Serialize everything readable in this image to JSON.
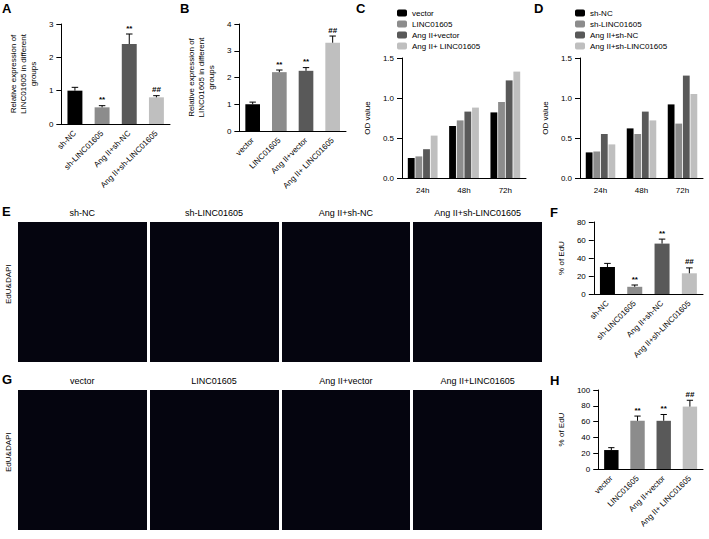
{
  "chart_data": [
    {
      "panel": "A",
      "type": "bar",
      "y_label": "Relative expression of LINC01605 in different groups",
      "categories": [
        "sh-NC",
        "sh-LINC01605",
        "Ang II+sh-NC",
        "Ang II+sh-LINC01605"
      ],
      "values": [
        1.0,
        0.5,
        2.4,
        0.8
      ],
      "errors": [
        0.1,
        0.05,
        0.3,
        0.05
      ],
      "annotations": [
        null,
        "**",
        "**",
        "##"
      ],
      "colors": [
        "#000000",
        "#8c8c8c",
        "#595959",
        "#bfbfbf"
      ],
      "ylim": [
        0,
        3
      ],
      "yticks": [
        0,
        1,
        2,
        3
      ],
      "grid": false
    },
    {
      "panel": "B",
      "type": "bar",
      "y_label": "Relative expression of LINC01605 in different groups",
      "categories": [
        "vector",
        "LINC01605",
        "Ang II+vector",
        "Ang II+ LINC01605"
      ],
      "values": [
        1.0,
        2.2,
        2.25,
        3.3
      ],
      "errors": [
        0.08,
        0.08,
        0.12,
        0.25
      ],
      "annotations": [
        null,
        "**",
        "**",
        "##"
      ],
      "colors": [
        "#000000",
        "#8c8c8c",
        "#595959",
        "#bfbfbf"
      ],
      "ylim": [
        0,
        4
      ],
      "yticks": [
        0,
        1,
        2,
        3,
        4
      ],
      "grid": false
    },
    {
      "panel": "C",
      "type": "bar",
      "y_label": "OD value",
      "categories": [
        "24h",
        "48h",
        "72h"
      ],
      "series": [
        {
          "name": "vector",
          "color": "#000000",
          "values": [
            0.25,
            0.65,
            0.82
          ]
        },
        {
          "name": "LINC01605",
          "color": "#8c8c8c",
          "values": [
            0.27,
            0.72,
            0.95
          ]
        },
        {
          "name": "Ang II+vector",
          "color": "#595959",
          "values": [
            0.36,
            0.83,
            1.22
          ]
        },
        {
          "name": "Ang II+ LINC01605",
          "color": "#bfbfbf",
          "values": [
            0.53,
            0.88,
            1.33
          ]
        }
      ],
      "ylim": [
        0,
        1.5
      ],
      "yticks": [
        {
          "value": 0,
          "label": "0.0"
        },
        {
          "value": 0.5,
          "label": "0.5"
        },
        {
          "value": 1,
          "label": "1.0"
        },
        {
          "value": 1.5,
          "label": "1.5"
        }
      ],
      "legend": "top-left",
      "grid": false
    },
    {
      "panel": "D",
      "type": "bar",
      "y_label": "OD value",
      "categories": [
        "24h",
        "48h",
        "72h"
      ],
      "series": [
        {
          "name": "sh-NC",
          "color": "#000000",
          "values": [
            0.32,
            0.62,
            0.92
          ]
        },
        {
          "name": "sh-LINC01605",
          "color": "#8c8c8c",
          "values": [
            0.33,
            0.55,
            0.68
          ]
        },
        {
          "name": "Ang II+sh-NC",
          "color": "#595959",
          "values": [
            0.55,
            0.83,
            1.28
          ]
        },
        {
          "name": "Ang II+sh-LINC01605",
          "color": "#bfbfbf",
          "values": [
            0.42,
            0.72,
            1.05
          ]
        }
      ],
      "ylim": [
        0,
        1.5
      ],
      "yticks": [
        {
          "value": 0,
          "label": "0.0"
        },
        {
          "value": 0.5,
          "label": "0.5"
        },
        {
          "value": 1,
          "label": "1.0"
        },
        {
          "value": 1.5,
          "label": "1.5"
        }
      ],
      "legend": "top-left",
      "grid": false
    },
    {
      "panel": "F",
      "type": "bar",
      "y_label": "% of EdU",
      "categories": [
        "sh-NC",
        "sh-LINC01605",
        "Ang II+sh-NC",
        "Ang II+sh-LINC01605"
      ],
      "values": [
        30,
        8,
        56,
        23
      ],
      "errors": [
        4,
        2,
        5,
        6
      ],
      "annotations": [
        null,
        "**",
        "**",
        "##"
      ],
      "colors": [
        "#000000",
        "#8c8c8c",
        "#595959",
        "#bfbfbf"
      ],
      "ylim": [
        0,
        80
      ],
      "yticks": [
        0,
        20,
        40,
        60,
        80
      ],
      "grid": false
    },
    {
      "panel": "H",
      "type": "bar",
      "y_label": "% of EdU",
      "categories": [
        "vector",
        "LINC01605",
        "Ang II+vector",
        "Ang II+ LINC01605"
      ],
      "values": [
        24,
        61,
        61,
        79
      ],
      "errors": [
        3,
        6,
        8,
        8
      ],
      "annotations": [
        null,
        "**",
        "**",
        "##"
      ],
      "colors": [
        "#000000",
        "#8c8c8c",
        "#595959",
        "#bfbfbf"
      ],
      "ylim": [
        0,
        100
      ],
      "yticks": [
        0,
        20,
        40,
        60,
        80,
        100
      ],
      "grid": false
    }
  ],
  "image_panels": [
    {
      "panel": "E",
      "stain": "EdU&DAPI",
      "labels": [
        "sh-NC",
        "sh-LINC01605",
        "Ang II+sh-NC",
        "Ang II+sh-LINC01605"
      ]
    },
    {
      "panel": "G",
      "stain": "EdU&DAPI",
      "labels": [
        "vector",
        "LINC01605",
        "Ang II+vector",
        "Ang II+LINC01605"
      ]
    }
  ]
}
